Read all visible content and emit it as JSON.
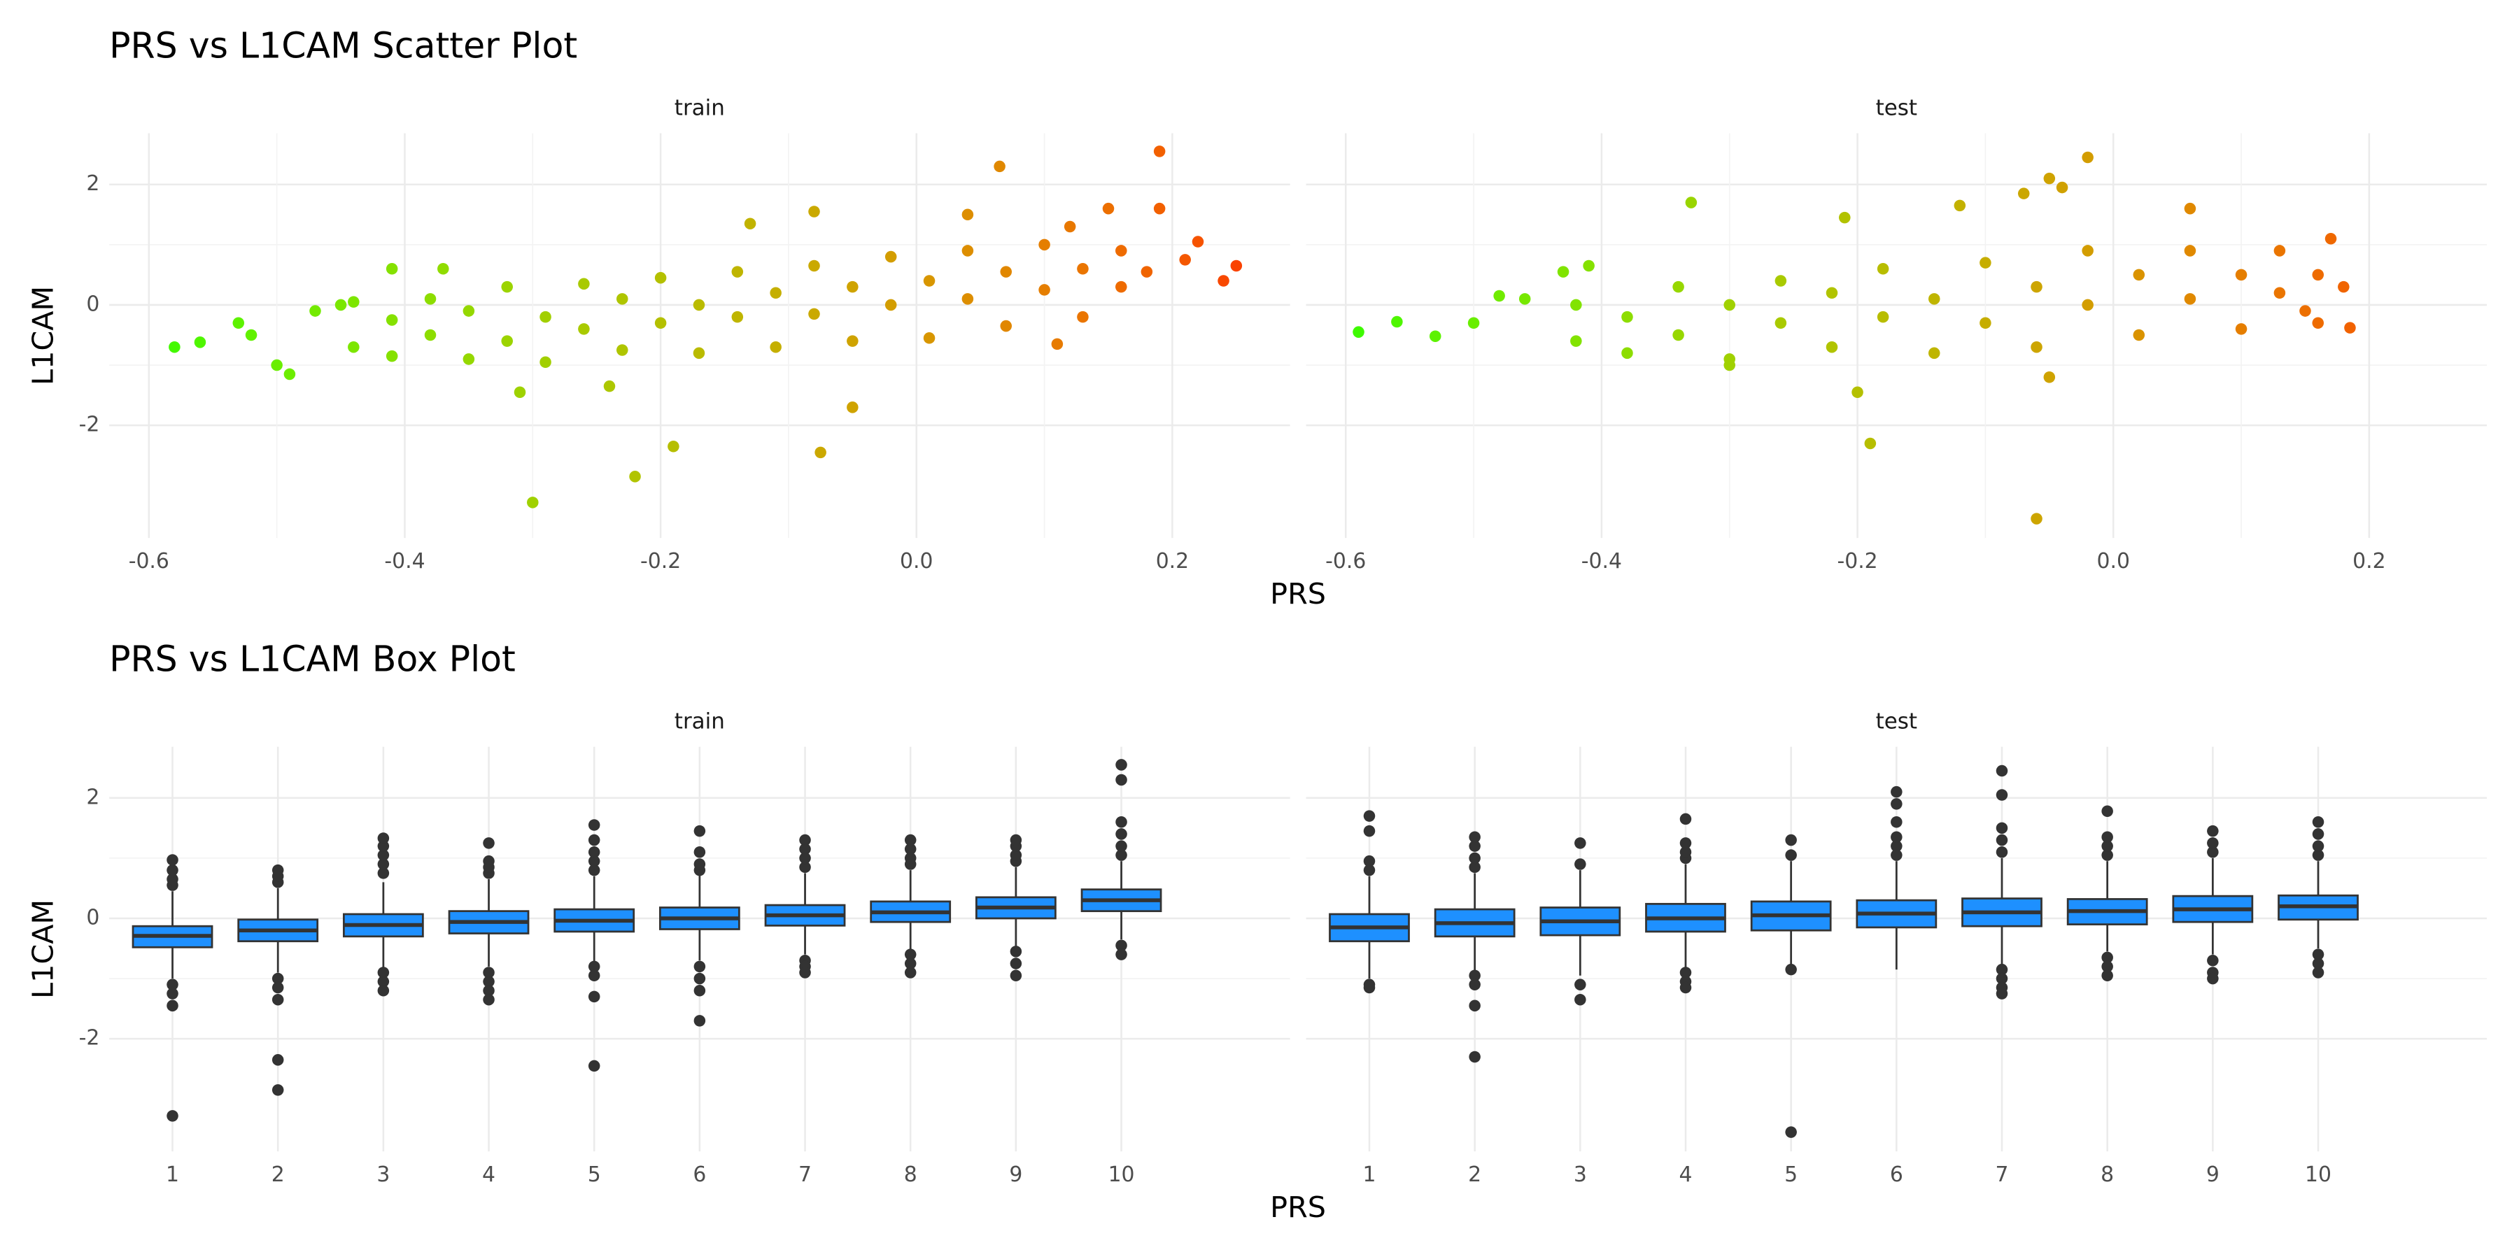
{
  "chart_data": [
    {
      "type": "scatter",
      "title": "PRS vs L1CAM Scatter Plot",
      "x_label": "PRS",
      "y_label": "L1CAM",
      "xlim": [
        -0.631,
        0.292
      ],
      "xticks": [
        -0.6,
        -0.4,
        -0.2,
        {
          "value": 0,
          "label": "0.0"
        },
        0.2
      ],
      "ylim": [
        -3.87,
        2.85
      ],
      "yticks": [
        -2,
        0,
        2
      ],
      "grid": true,
      "color_scale": [
        "#00ff00",
        "#ff1a00"
      ],
      "facets": [
        {
          "name": "train",
          "x": [
            -0.58,
            -0.56,
            -0.53,
            -0.52,
            -0.5,
            -0.49,
            -0.47,
            -0.45,
            -0.41,
            -0.37,
            -0.3,
            -0.22,
            -0.19,
            -0.075,
            -0.05,
            0.065,
            0.19,
            0.19,
            0.22,
            0.25,
            0.24,
            0.21,
            0.11,
            -0.31,
            -0.24,
            -0.13,
            -0.08,
            0.04,
            0.15,
            0.12,
            -0.44,
            -0.44,
            -0.41,
            -0.41,
            -0.38,
            -0.38,
            -0.35,
            -0.35,
            -0.32,
            -0.32,
            -0.29,
            -0.29,
            -0.26,
            -0.26,
            -0.23,
            -0.23,
            -0.2,
            -0.2,
            -0.17,
            -0.17,
            -0.14,
            -0.14,
            -0.11,
            -0.11,
            -0.08,
            -0.08,
            -0.05,
            -0.05,
            -0.02,
            -0.02,
            0.01,
            0.01,
            0.04,
            0.04,
            0.07,
            0.07,
            0.1,
            0.1,
            0.13,
            0.13,
            0.16,
            0.16,
            0.18
          ],
          "y": [
            -0.7,
            -0.62,
            -0.3,
            -0.5,
            -1.0,
            -1.15,
            -0.1,
            0.0,
            0.6,
            0.6,
            -3.28,
            -2.85,
            -2.35,
            -2.45,
            -1.7,
            2.3,
            2.55,
            1.6,
            1.05,
            0.65,
            0.4,
            0.75,
            -0.65,
            -1.45,
            -1.35,
            1.35,
            1.55,
            1.5,
            1.6,
            1.3,
            0.05,
            -0.7,
            -0.25,
            -0.85,
            0.1,
            -0.5,
            -0.9,
            -0.1,
            0.3,
            -0.6,
            -0.2,
            -0.95,
            0.35,
            -0.4,
            -0.75,
            0.1,
            0.45,
            -0.3,
            -0.8,
            0.0,
            0.55,
            -0.2,
            -0.7,
            0.2,
            0.65,
            -0.15,
            -0.6,
            0.3,
            0.8,
            0.0,
            -0.55,
            0.4,
            0.9,
            0.1,
            -0.35,
            0.55,
            1.0,
            0.25,
            -0.2,
            0.6,
            0.9,
            0.3,
            0.55
          ]
        },
        {
          "name": "test",
          "x": [
            -0.59,
            -0.56,
            -0.53,
            -0.5,
            -0.48,
            -0.46,
            -0.43,
            -0.41,
            -0.33,
            -0.21,
            -0.19,
            -0.2,
            -0.06,
            -0.07,
            -0.05,
            -0.02,
            -0.04,
            0.06,
            0.17,
            0.18,
            0.185,
            0.16,
            -0.12,
            -0.3,
            -0.05,
            -0.42,
            -0.42,
            -0.38,
            -0.38,
            -0.34,
            -0.34,
            -0.3,
            -0.3,
            -0.26,
            -0.26,
            -0.22,
            -0.22,
            -0.18,
            -0.18,
            -0.14,
            -0.14,
            -0.1,
            -0.1,
            -0.06,
            -0.06,
            -0.02,
            -0.02,
            0.02,
            0.02,
            0.06,
            0.06,
            0.1,
            0.1,
            0.13,
            0.13,
            0.15,
            0.16
          ],
          "y": [
            -0.45,
            -0.28,
            -0.52,
            -0.3,
            0.15,
            0.1,
            0.55,
            0.65,
            1.7,
            1.45,
            -2.3,
            -1.45,
            -3.55,
            1.85,
            2.1,
            2.45,
            1.95,
            1.6,
            1.1,
            0.3,
            -0.38,
            -0.3,
            1.65,
            -1.0,
            -1.2,
            -0.6,
            0.0,
            -0.2,
            -0.8,
            0.3,
            -0.5,
            -0.9,
            0.0,
            0.4,
            -0.3,
            -0.7,
            0.2,
            0.6,
            -0.2,
            -0.8,
            0.1,
            0.7,
            -0.3,
            -0.7,
            0.3,
            0.9,
            0.0,
            -0.5,
            0.5,
            0.9,
            0.1,
            -0.4,
            0.5,
            0.9,
            0.2,
            -0.1,
            0.5
          ]
        }
      ]
    },
    {
      "type": "box",
      "title": "PRS vs L1CAM Box Plot",
      "x_label": "PRS",
      "y_label": "L1CAM",
      "categories": [
        "1",
        "2",
        "3",
        "4",
        "5",
        "6",
        "7",
        "8",
        "9",
        "10"
      ],
      "ylim": [
        -3.87,
        2.85
      ],
      "yticks": [
        -2,
        0,
        2
      ],
      "grid": true,
      "color": "#1e90ff",
      "outline_color": "#333333",
      "facets": [
        {
          "name": "train",
          "boxes": [
            {
              "q1": -0.48,
              "median": -0.29,
              "q3": -0.13,
              "whisker_low": -1.0,
              "whisker_high": 0.45,
              "outliers": [
                0.55,
                0.65,
                0.8,
                0.97,
                -1.1,
                -1.25,
                -1.45,
                -3.28
              ]
            },
            {
              "q1": -0.38,
              "median": -0.2,
              "q3": -0.02,
              "whisker_low": -0.9,
              "whisker_high": 0.5,
              "outliers": [
                0.6,
                0.7,
                0.8,
                -1.0,
                -1.15,
                -1.35,
                -2.35,
                -2.85
              ]
            },
            {
              "q1": -0.3,
              "median": -0.11,
              "q3": 0.07,
              "whisker_low": -0.85,
              "whisker_high": 0.6,
              "outliers": [
                0.75,
                0.9,
                1.05,
                1.2,
                1.33,
                -0.9,
                -1.05,
                -1.2
              ]
            },
            {
              "q1": -0.25,
              "median": -0.06,
              "q3": 0.12,
              "whisker_low": -0.8,
              "whisker_high": 0.65,
              "outliers": [
                0.75,
                0.85,
                0.95,
                1.25,
                -0.9,
                -1.05,
                -1.2,
                -1.35
              ]
            },
            {
              "q1": -0.22,
              "median": -0.04,
              "q3": 0.15,
              "whisker_low": -0.75,
              "whisker_high": 0.7,
              "outliers": [
                0.8,
                0.95,
                1.1,
                1.3,
                1.55,
                -0.8,
                -0.95,
                -1.3,
                -2.45
              ]
            },
            {
              "q1": -0.18,
              "median": 0.0,
              "q3": 0.18,
              "whisker_low": -0.7,
              "whisker_high": 0.72,
              "outliers": [
                0.8,
                0.9,
                1.1,
                1.45,
                -0.8,
                -1.0,
                -1.2,
                -1.7
              ]
            },
            {
              "q1": -0.12,
              "median": 0.05,
              "q3": 0.22,
              "whisker_low": -0.6,
              "whisker_high": 0.75,
              "outliers": [
                0.85,
                1.0,
                1.15,
                1.3,
                -0.7,
                -0.8,
                -0.9
              ]
            },
            {
              "q1": -0.06,
              "median": 0.1,
              "q3": 0.28,
              "whisker_low": -0.55,
              "whisker_high": 0.8,
              "outliers": [
                0.9,
                1.0,
                1.15,
                1.3,
                -0.6,
                -0.75,
                -0.9
              ]
            },
            {
              "q1": 0.0,
              "median": 0.18,
              "q3": 0.35,
              "whisker_low": -0.5,
              "whisker_high": 0.85,
              "outliers": [
                0.95,
                1.05,
                1.2,
                1.3,
                -0.55,
                -0.75,
                -0.95
              ]
            },
            {
              "q1": 0.12,
              "median": 0.3,
              "q3": 0.48,
              "whisker_low": -0.35,
              "whisker_high": 0.95,
              "outliers": [
                1.05,
                1.2,
                1.4,
                1.6,
                2.3,
                2.55,
                -0.45,
                -0.6
              ]
            }
          ]
        },
        {
          "name": "test",
          "boxes": [
            {
              "q1": -0.38,
              "median": -0.15,
              "q3": 0.07,
              "whisker_low": -1.0,
              "whisker_high": 0.7,
              "outliers": [
                0.8,
                0.95,
                1.45,
                1.7,
                -1.1,
                -1.15
              ]
            },
            {
              "q1": -0.3,
              "median": -0.08,
              "q3": 0.15,
              "whisker_low": -0.9,
              "whisker_high": 0.75,
              "outliers": [
                0.85,
                1.0,
                1.2,
                1.35,
                -0.95,
                -1.1,
                -1.45,
                -2.3
              ]
            },
            {
              "q1": -0.28,
              "median": -0.05,
              "q3": 0.18,
              "whisker_low": -0.95,
              "whisker_high": 0.8,
              "outliers": [
                0.9,
                1.25,
                -1.1,
                -1.35
              ]
            },
            {
              "q1": -0.22,
              "median": 0.0,
              "q3": 0.24,
              "whisker_low": -0.85,
              "whisker_high": 0.9,
              "outliers": [
                1.0,
                1.1,
                1.25,
                1.65,
                -0.9,
                -1.05,
                -1.15
              ]
            },
            {
              "q1": -0.2,
              "median": 0.05,
              "q3": 0.28,
              "whisker_low": -0.8,
              "whisker_high": 0.95,
              "outliers": [
                1.05,
                1.3,
                -0.85,
                -3.55
              ]
            },
            {
              "q1": -0.15,
              "median": 0.08,
              "q3": 0.3,
              "whisker_low": -0.85,
              "whisker_high": 0.95,
              "outliers": [
                1.05,
                1.2,
                1.35,
                1.6,
                1.9,
                2.1
              ]
            },
            {
              "q1": -0.13,
              "median": 0.1,
              "q3": 0.33,
              "whisker_low": -0.8,
              "whisker_high": 1.0,
              "outliers": [
                1.1,
                1.3,
                1.5,
                2.05,
                2.45,
                -0.85,
                -1.0,
                -1.15,
                -1.25
              ]
            },
            {
              "q1": -0.1,
              "median": 0.12,
              "q3": 0.32,
              "whisker_low": -0.55,
              "whisker_high": 0.95,
              "outliers": [
                1.05,
                1.2,
                1.35,
                1.78,
                -0.65,
                -0.8,
                -0.95
              ]
            },
            {
              "q1": -0.06,
              "median": 0.15,
              "q3": 0.37,
              "whisker_low": -0.6,
              "whisker_high": 1.0,
              "outliers": [
                1.1,
                1.25,
                1.45,
                -0.7,
                -0.9,
                -1.0
              ]
            },
            {
              "q1": -0.02,
              "median": 0.2,
              "q3": 0.38,
              "whisker_low": -0.5,
              "whisker_high": 0.95,
              "outliers": [
                1.05,
                1.2,
                1.4,
                1.6,
                -0.6,
                -0.75,
                -0.9
              ]
            }
          ]
        }
      ]
    }
  ]
}
